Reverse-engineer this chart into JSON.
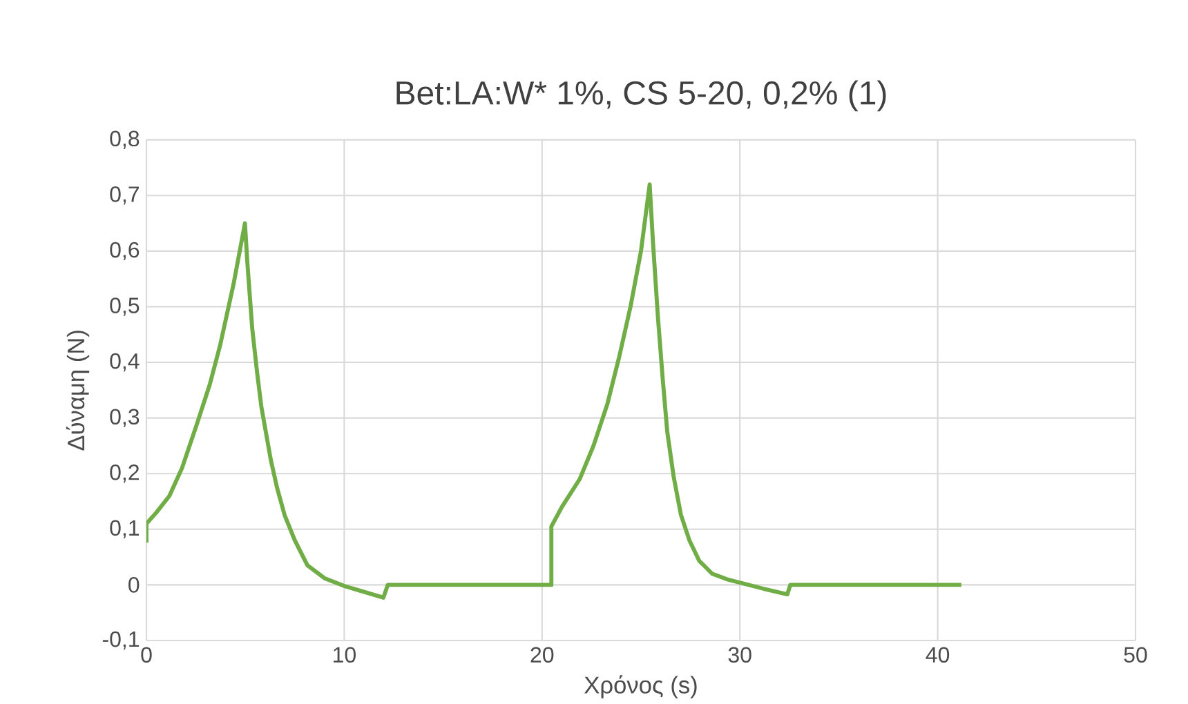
{
  "chart_data": {
    "type": "line",
    "title": "Bet:LA:W* 1%, CS 5-20, 0,2% (1)",
    "xlabel": "Χρόνος (s)",
    "ylabel": "Δύναμη (N)",
    "xlim": [
      0,
      50
    ],
    "ylim": [
      -0.1,
      0.8
    ],
    "xticks": [
      0,
      10,
      20,
      30,
      40,
      50
    ],
    "yticks": [
      {
        "value": -0.1,
        "label": "-0,1"
      },
      {
        "value": 0,
        "label": "0"
      },
      {
        "value": 0.1,
        "label": "0,1"
      },
      {
        "value": 0.2,
        "label": "0,2"
      },
      {
        "value": 0.3,
        "label": "0,3"
      },
      {
        "value": 0.4,
        "label": "0,4"
      },
      {
        "value": 0.5,
        "label": "0,5"
      },
      {
        "value": 0.6,
        "label": "0,6"
      },
      {
        "value": 0.7,
        "label": "0,7"
      },
      {
        "value": 0.8,
        "label": "0,8"
      }
    ],
    "grid": true,
    "marker": "none",
    "line_style": "solid",
    "series": [
      {
        "color": "#70ad47",
        "x": [
          0,
          0,
          0.5,
          1.16,
          1.8,
          2.56,
          3.2,
          3.72,
          4.4,
          4.98,
          5.1,
          5.35,
          5.6,
          5.81,
          6.28,
          6.6,
          6.98,
          7.5,
          8.14,
          9,
          10,
          11.98,
          12.2,
          20.47,
          20.47,
          21.0,
          21.9,
          22.6,
          23.3,
          23.9,
          24.47,
          25.0,
          25.44,
          25.6,
          25.86,
          26.1,
          26.33,
          26.65,
          27.02,
          27.45,
          27.95,
          28.6,
          29.35,
          31.2,
          32.4,
          32.55,
          41.2
        ],
        "values": [
          0.076,
          0.11,
          0.13,
          0.16,
          0.21,
          0.29,
          0.36,
          0.43,
          0.54,
          0.65,
          0.58,
          0.46,
          0.38,
          0.32,
          0.226,
          0.175,
          0.126,
          0.08,
          0.035,
          0.012,
          -0.002,
          -0.023,
          0,
          0,
          0.105,
          0.14,
          0.19,
          0.25,
          0.325,
          0.41,
          0.5,
          0.6,
          0.72,
          0.62,
          0.48,
          0.37,
          0.275,
          0.195,
          0.126,
          0.08,
          0.043,
          0.02,
          0.01,
          -0.007,
          -0.017,
          0,
          0
        ]
      }
    ]
  }
}
